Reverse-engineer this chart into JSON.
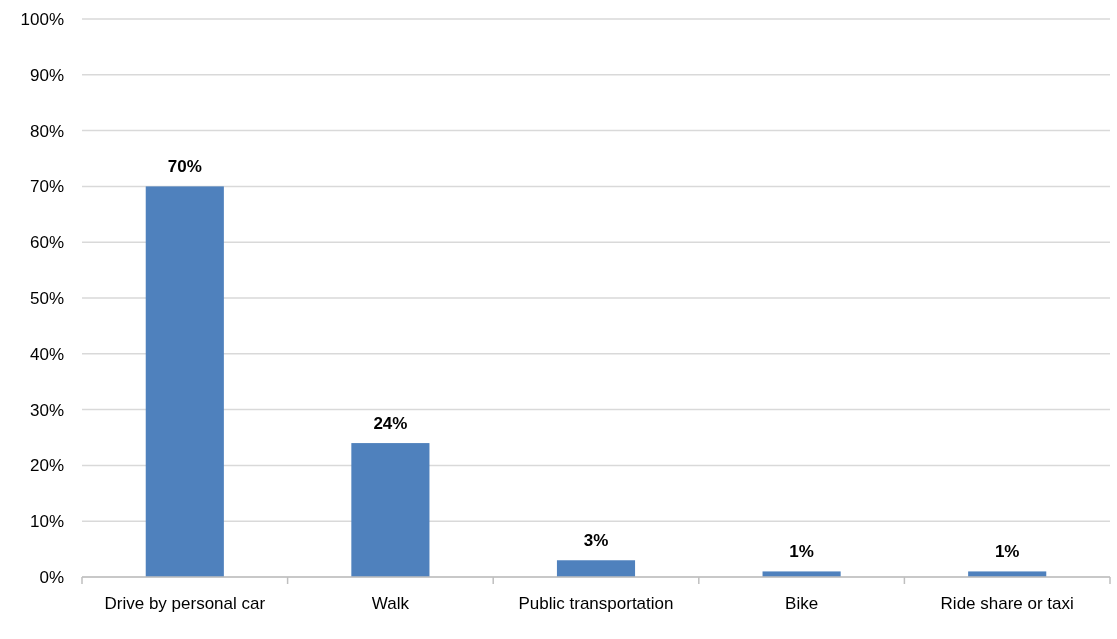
{
  "chart_data": {
    "type": "bar",
    "categories": [
      "Drive by personal car",
      "Walk",
      "Public transportation",
      "Bike",
      "Ride share or taxi"
    ],
    "values": [
      70,
      24,
      3,
      1,
      1
    ],
    "value_labels": [
      "70%",
      "24%",
      "3%",
      "1%",
      "1%"
    ],
    "color": "#4f81bd",
    "ylim": [
      0,
      100
    ],
    "yticks": [
      {
        "value": 0,
        "label": "0%"
      },
      {
        "value": 10,
        "label": "10%"
      },
      {
        "value": 20,
        "label": "20%"
      },
      {
        "value": 30,
        "label": "30%"
      },
      {
        "value": 40,
        "label": "40%"
      },
      {
        "value": 50,
        "label": "50%"
      },
      {
        "value": 60,
        "label": "60%"
      },
      {
        "value": 70,
        "label": "70%"
      },
      {
        "value": 80,
        "label": "80%"
      },
      {
        "value": 90,
        "label": "90%"
      },
      {
        "value": 100,
        "label": "100%"
      }
    ],
    "grid": "y"
  }
}
